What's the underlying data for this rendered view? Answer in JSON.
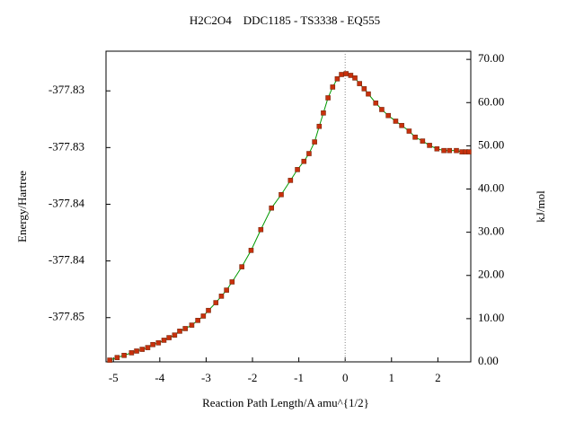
{
  "chart_data": {
    "type": "line",
    "title": "H2C2O4    DDC1185 - TS3338 - EQ555",
    "x_label": "Reaction Path Length/A amu^{1/2}",
    "y_label": "Energy/Hartree",
    "y2_label": "kJ/mol",
    "xlim": [
      -5.16,
      2.71
    ],
    "xticks": [
      -5,
      -4,
      -3,
      -2,
      -1,
      0,
      1,
      2
    ],
    "ylim": [
      -377.8514,
      -377.824
    ],
    "yticks": [
      {
        "value": -377.8475,
        "label": "-377.85"
      },
      {
        "value": -377.8425,
        "label": "-377.84"
      },
      {
        "value": -377.8375,
        "label": "-377.84"
      },
      {
        "value": -377.8325,
        "label": "-377.83"
      },
      {
        "value": -377.8275,
        "label": "-377.83"
      }
    ],
    "y2lim": [
      0,
      71.9
    ],
    "y2ticks": [
      {
        "value": 0,
        "label": "0.00"
      },
      {
        "value": 10,
        "label": "10.00"
      },
      {
        "value": 20,
        "label": "20.00"
      },
      {
        "value": 30,
        "label": "30.00"
      },
      {
        "value": 40,
        "label": "40.00"
      },
      {
        "value": 50,
        "label": "50.00"
      },
      {
        "value": 60,
        "label": "60.00"
      },
      {
        "value": 70,
        "label": "70.00"
      }
    ],
    "reference_line": {
      "x": 0
    },
    "series": [
      {
        "axis": "y2",
        "color": "#009900",
        "marker_color": "#c8300c",
        "x": [
          -5.08,
          -4.92,
          -4.77,
          -4.61,
          -4.5,
          -4.38,
          -4.26,
          -4.15,
          -4.03,
          -3.91,
          -3.8,
          -3.68,
          -3.57,
          -3.45,
          -3.31,
          -3.18,
          -3.06,
          -2.95,
          -2.79,
          -2.67,
          -2.56,
          -2.44,
          -2.23,
          -2.03,
          -1.82,
          -1.59,
          -1.38,
          -1.18,
          -1.03,
          -0.89,
          -0.78,
          -0.66,
          -0.56,
          -0.47,
          -0.37,
          -0.27,
          -0.17,
          -0.08,
          0.02,
          0.12,
          0.21,
          0.31,
          0.41,
          0.5,
          0.66,
          0.79,
          0.93,
          1.09,
          1.22,
          1.38,
          1.51,
          1.67,
          1.82,
          1.98,
          2.13,
          2.25,
          2.4,
          2.52,
          2.6,
          2.67
        ],
        "values": [
          0.4,
          1.0,
          1.5,
          2.1,
          2.5,
          2.9,
          3.3,
          4.0,
          4.4,
          5.0,
          5.6,
          6.2,
          7.1,
          7.7,
          8.5,
          9.6,
          10.6,
          11.9,
          13.7,
          15.2,
          16.6,
          18.5,
          22.0,
          25.8,
          30.6,
          35.6,
          38.7,
          42.0,
          44.5,
          46.4,
          48.2,
          50.9,
          54.5,
          57.6,
          61.1,
          63.6,
          65.5,
          66.5,
          66.7,
          66.3,
          65.7,
          64.4,
          63.2,
          62.0,
          59.9,
          58.4,
          57.0,
          55.7,
          54.7,
          53.4,
          52.0,
          51.1,
          50.1,
          49.3,
          48.9,
          48.9,
          48.9,
          48.6,
          48.6,
          48.6
        ]
      }
    ]
  }
}
